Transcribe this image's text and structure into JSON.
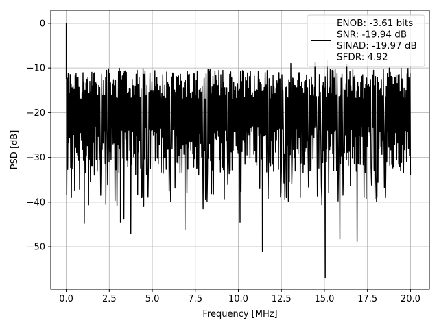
{
  "chart_data": {
    "type": "line",
    "title": "",
    "xlabel": "Frequency [MHz]",
    "ylabel": "PSD [dB]",
    "xlim": [
      -0.9,
      21.1
    ],
    "ylim": [
      -59.5,
      2.9
    ],
    "xticks": [
      0.0,
      2.5,
      5.0,
      7.5,
      10.0,
      12.5,
      15.0,
      17.5,
      20.0
    ],
    "xtick_labels": [
      "0.0",
      "2.5",
      "5.0",
      "7.5",
      "10.0",
      "12.5",
      "15.0",
      "17.5",
      "20.0"
    ],
    "yticks": [
      0,
      -10,
      -20,
      -30,
      -40,
      -50
    ],
    "ytick_labels": [
      "0",
      "−10",
      "−20",
      "−30",
      "−40",
      "−50"
    ],
    "grid": true,
    "legend_position": "top-right",
    "series": [
      {
        "name": "ENOB: -3.61 bits\nSNR: -19.94 dB\nSINAD: -19.97 dB\nSFDR: 4.92",
        "legend_lines": [
          "ENOB: -3.61 bits",
          "SNR: -19.94 dB",
          "SINAD: -19.97 dB",
          "SFDR: 4.92"
        ],
        "color": "#000000",
        "x_range": [
          0.0,
          20.0
        ],
        "num_points": 700,
        "noise_floor_db": -20,
        "noise_upper_envelope_db": -11,
        "noise_lower_envelope_db": -33,
        "anchor_points": [
          {
            "x": 0.0,
            "y": 0.0
          },
          {
            "x": 0.02,
            "y": -11
          },
          {
            "x": 0.05,
            "y": -22
          },
          {
            "x": 0.3,
            "y": -39
          },
          {
            "x": 1.05,
            "y": -44.8
          },
          {
            "x": 1.3,
            "y": -40.6
          },
          {
            "x": 2.3,
            "y": -40.5
          },
          {
            "x": 2.95,
            "y": -40.8
          },
          {
            "x": 3.15,
            "y": -44.5
          },
          {
            "x": 3.35,
            "y": -43.8
          },
          {
            "x": 3.75,
            "y": -47.1
          },
          {
            "x": 4.5,
            "y": -41
          },
          {
            "x": 6.9,
            "y": -46.1
          },
          {
            "x": 7.95,
            "y": -41.5
          },
          {
            "x": 10.1,
            "y": -44.5
          },
          {
            "x": 11.4,
            "y": -51.0
          },
          {
            "x": 13.6,
            "y": -39
          },
          {
            "x": 14.85,
            "y": -40.6
          },
          {
            "x": 15.05,
            "y": -56.9
          },
          {
            "x": 15.9,
            "y": -48.3
          },
          {
            "x": 16.9,
            "y": -48.8
          },
          {
            "x": 17.3,
            "y": -39
          },
          {
            "x": 18.55,
            "y": -39
          },
          {
            "x": 14.45,
            "y": -8.8
          },
          {
            "x": 15.15,
            "y": -8.3
          },
          {
            "x": 13.05,
            "y": -9.0
          },
          {
            "x": 16.3,
            "y": -9.2
          }
        ]
      }
    ]
  }
}
